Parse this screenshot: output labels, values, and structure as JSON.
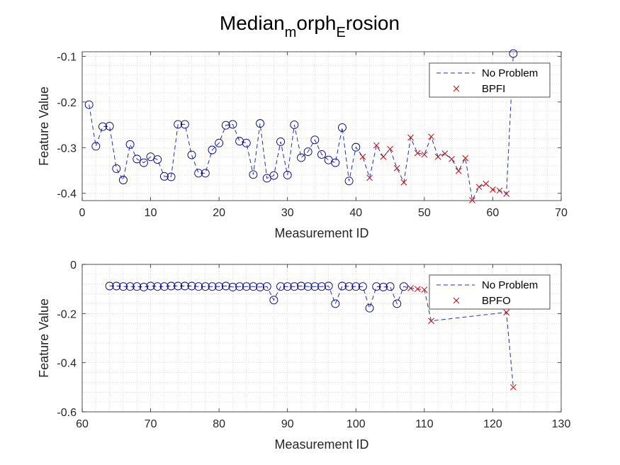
{
  "figure": {
    "title_parts": [
      "Median",
      "m",
      "orph",
      "E",
      "rosion"
    ]
  },
  "chart_data": [
    {
      "type": "scatter",
      "xlabel": "Measurement ID",
      "ylabel": "Feature Value",
      "xlim": [
        0,
        70
      ],
      "ylim": [
        -0.416,
        -0.09
      ],
      "xticks": [
        0,
        10,
        20,
        30,
        40,
        50,
        60,
        70
      ],
      "yticks": [
        -0.4,
        -0.3,
        -0.2,
        -0.1
      ],
      "ytick_labels": [
        "-0.4",
        "-0.3",
        "-0.2",
        "-0.1"
      ],
      "grid": "minor-dotted",
      "legend_position": "top-right",
      "series": [
        {
          "name": "No Problem",
          "marker": "circle",
          "line": "dashed",
          "color": "#00008B",
          "x": [
            1,
            2,
            3,
            4,
            5,
            6,
            7,
            8,
            9,
            10,
            11,
            12,
            13,
            14,
            15,
            16,
            17,
            18,
            19,
            20,
            21,
            22,
            23,
            24,
            25,
            26,
            27,
            28,
            29,
            30,
            31,
            32,
            33,
            34,
            35,
            36,
            37,
            38,
            39,
            40
          ],
          "y": [
            -0.206,
            -0.297,
            -0.254,
            -0.253,
            -0.346,
            -0.371,
            -0.293,
            -0.325,
            -0.333,
            -0.32,
            -0.326,
            -0.363,
            -0.364,
            -0.249,
            -0.249,
            -0.316,
            -0.356,
            -0.356,
            -0.305,
            -0.29,
            -0.251,
            -0.249,
            -0.286,
            -0.29,
            -0.359,
            -0.247,
            -0.367,
            -0.361,
            -0.287,
            -0.36,
            -0.25,
            -0.322,
            -0.309,
            -0.283,
            -0.315,
            -0.327,
            -0.333,
            -0.256,
            -0.373,
            -0.299
          ]
        },
        {
          "name": "BPFI",
          "marker": "x",
          "line": "dashed",
          "color": "#D00000",
          "x": [
            41,
            42,
            43,
            44,
            45,
            46,
            47,
            48,
            49,
            50,
            51,
            52,
            53,
            54,
            55,
            56,
            57,
            58,
            59,
            60,
            61,
            62
          ],
          "y": [
            -0.32,
            -0.366,
            -0.295,
            -0.32,
            -0.303,
            -0.345,
            -0.376,
            -0.278,
            -0.312,
            -0.315,
            -0.276,
            -0.32,
            -0.313,
            -0.325,
            -0.351,
            -0.323,
            -0.415,
            -0.386,
            -0.379,
            -0.392,
            -0.394,
            -0.401
          ]
        },
        {
          "name": "",
          "marker": "circle",
          "line": "dashed",
          "color": "#00008B",
          "x": [
            63
          ],
          "y": [
            -0.094
          ]
        }
      ]
    },
    {
      "type": "scatter",
      "xlabel": "Measurement ID",
      "ylabel": "Feature Value",
      "xlim": [
        60,
        130
      ],
      "ylim": [
        -0.6,
        0
      ],
      "xticks": [
        60,
        70,
        80,
        90,
        100,
        110,
        120,
        130
      ],
      "yticks": [
        -0.6,
        -0.4,
        -0.2,
        0
      ],
      "ytick_labels": [
        "-0.6",
        "-0.4",
        "-0.2",
        "0"
      ],
      "grid": "minor-dotted",
      "legend_position": "top-right",
      "series": [
        {
          "name": "No Problem",
          "marker": "circle",
          "line": "dashed",
          "color": "#00008B",
          "x": [
            64,
            65,
            66,
            67,
            68,
            69,
            70,
            71,
            72,
            73,
            74,
            75,
            76,
            77,
            78,
            79,
            80,
            81,
            82,
            83,
            84,
            85,
            86,
            87,
            88,
            89,
            90,
            91,
            92,
            93,
            94,
            95,
            96,
            97,
            98,
            99,
            100,
            101,
            102,
            103,
            104,
            105,
            106,
            107
          ],
          "y": [
            -0.088,
            -0.088,
            -0.09,
            -0.09,
            -0.09,
            -0.092,
            -0.088,
            -0.09,
            -0.09,
            -0.088,
            -0.088,
            -0.088,
            -0.088,
            -0.09,
            -0.09,
            -0.09,
            -0.09,
            -0.088,
            -0.092,
            -0.09,
            -0.09,
            -0.09,
            -0.092,
            -0.09,
            -0.145,
            -0.09,
            -0.09,
            -0.09,
            -0.088,
            -0.09,
            -0.09,
            -0.09,
            -0.088,
            -0.16,
            -0.088,
            -0.09,
            -0.09,
            -0.09,
            -0.178,
            -0.09,
            -0.092,
            -0.09,
            -0.16,
            -0.09
          ]
        },
        {
          "name": "BPFO",
          "marker": "x",
          "line": "dashed",
          "color": "#D00000",
          "x": [
            108,
            109,
            110,
            111,
            122,
            123
          ],
          "y": [
            -0.097,
            -0.1,
            -0.103,
            -0.23,
            -0.195,
            -0.5
          ]
        }
      ]
    }
  ]
}
